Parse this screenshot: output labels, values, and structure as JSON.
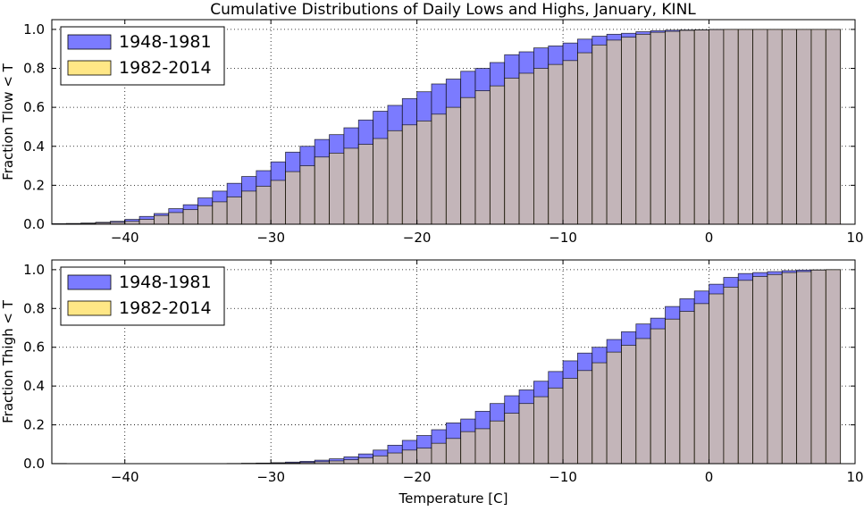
{
  "title": "Cumulative Distributions of Daily Lows and Highs, January, KINL",
  "colors": {
    "series_a": "#7b7bff",
    "series_b": "#ffe680",
    "overlap": "#bba878",
    "edge": "#000000"
  },
  "chart_data": [
    {
      "type": "bar",
      "ylabel": "Fraction Tlow < T",
      "xlabel": "",
      "xlim": [
        -45,
        10
      ],
      "ylim": [
        0,
        1.05
      ],
      "xticks": [
        -40,
        -30,
        -20,
        -10,
        0,
        10
      ],
      "yticks": [
        0.0,
        0.2,
        0.4,
        0.6,
        0.8,
        1.0
      ],
      "grid": true,
      "legend_position": "top-left",
      "bin_width": 1,
      "bin_left_edges": [
        -45,
        -44,
        -43,
        -42,
        -41,
        -40,
        -39,
        -38,
        -37,
        -36,
        -35,
        -34,
        -33,
        -32,
        -31,
        -30,
        -29,
        -28,
        -27,
        -26,
        -25,
        -24,
        -23,
        -22,
        -21,
        -20,
        -19,
        -18,
        -17,
        -16,
        -15,
        -14,
        -13,
        -12,
        -11,
        -10,
        -9,
        -8,
        -7,
        -6,
        -5,
        -4,
        -3,
        -2,
        -1,
        0,
        1,
        2,
        3,
        4,
        5,
        6,
        7,
        8
      ],
      "series": [
        {
          "name": "1948-1981",
          "values": [
            0.003,
            0.004,
            0.006,
            0.01,
            0.015,
            0.025,
            0.04,
            0.055,
            0.08,
            0.1,
            0.135,
            0.17,
            0.21,
            0.245,
            0.275,
            0.32,
            0.37,
            0.4,
            0.435,
            0.46,
            0.495,
            0.535,
            0.58,
            0.61,
            0.645,
            0.68,
            0.72,
            0.745,
            0.785,
            0.8,
            0.83,
            0.87,
            0.885,
            0.905,
            0.915,
            0.93,
            0.95,
            0.965,
            0.975,
            0.98,
            0.988,
            0.993,
            0.996,
            0.997,
            0.998,
            1.0,
            1.0,
            1.0,
            1.0,
            1.0,
            1.0,
            1.0,
            1.0,
            1.0
          ]
        },
        {
          "name": "1982-2014",
          "values": [
            0.001,
            0.002,
            0.004,
            0.007,
            0.01,
            0.015,
            0.025,
            0.045,
            0.06,
            0.075,
            0.095,
            0.115,
            0.14,
            0.17,
            0.195,
            0.225,
            0.27,
            0.3,
            0.345,
            0.365,
            0.39,
            0.41,
            0.44,
            0.48,
            0.51,
            0.53,
            0.565,
            0.6,
            0.65,
            0.685,
            0.71,
            0.75,
            0.775,
            0.8,
            0.82,
            0.84,
            0.88,
            0.92,
            0.945,
            0.96,
            0.975,
            0.985,
            0.99,
            0.995,
            0.997,
            0.999,
            1.0,
            1.0,
            1.0,
            1.0,
            1.0,
            1.0,
            1.0,
            1.0
          ]
        }
      ]
    },
    {
      "type": "bar",
      "ylabel": "Fraction Thigh < T",
      "xlabel": "Temperature [C]",
      "xlim": [
        -45,
        10
      ],
      "ylim": [
        0,
        1.05
      ],
      "xticks": [
        -40,
        -30,
        -20,
        -10,
        0,
        10
      ],
      "yticks": [
        0.0,
        0.2,
        0.4,
        0.6,
        0.8,
        1.0
      ],
      "grid": true,
      "legend_position": "top-left",
      "bin_width": 1,
      "bin_left_edges": [
        -45,
        -44,
        -43,
        -42,
        -41,
        -40,
        -39,
        -38,
        -37,
        -36,
        -35,
        -34,
        -33,
        -32,
        -31,
        -30,
        -29,
        -28,
        -27,
        -26,
        -25,
        -24,
        -23,
        -22,
        -21,
        -20,
        -19,
        -18,
        -17,
        -16,
        -15,
        -14,
        -13,
        -12,
        -11,
        -10,
        -9,
        -8,
        -7,
        -6,
        -5,
        -4,
        -3,
        -2,
        -1,
        0,
        1,
        2,
        3,
        4,
        5,
        6,
        7,
        8
      ],
      "series": [
        {
          "name": "1948-1981",
          "values": [
            0.001,
            0,
            0,
            0,
            0,
            0,
            0,
            0,
            0,
            0,
            0,
            0,
            0.001,
            0.002,
            0.003,
            0.005,
            0.008,
            0.012,
            0.018,
            0.025,
            0.035,
            0.05,
            0.07,
            0.095,
            0.12,
            0.145,
            0.175,
            0.21,
            0.23,
            0.27,
            0.31,
            0.35,
            0.38,
            0.425,
            0.475,
            0.53,
            0.57,
            0.6,
            0.64,
            0.68,
            0.72,
            0.75,
            0.81,
            0.85,
            0.89,
            0.925,
            0.96,
            0.98,
            0.985,
            0.99,
            0.995,
            0.998,
            0.999,
            1.0
          ]
        },
        {
          "name": "1982-2014",
          "values": [
            0,
            0,
            0,
            0,
            0,
            0,
            0,
            0,
            0,
            0,
            0,
            0,
            0,
            0.001,
            0.002,
            0.003,
            0.004,
            0.006,
            0.01,
            0.014,
            0.02,
            0.03,
            0.04,
            0.055,
            0.07,
            0.08,
            0.105,
            0.13,
            0.165,
            0.18,
            0.22,
            0.26,
            0.31,
            0.345,
            0.39,
            0.44,
            0.48,
            0.52,
            0.575,
            0.61,
            0.645,
            0.695,
            0.745,
            0.785,
            0.825,
            0.875,
            0.91,
            0.945,
            0.965,
            0.975,
            0.985,
            0.99,
            0.998,
            1.0
          ]
        }
      ]
    }
  ]
}
